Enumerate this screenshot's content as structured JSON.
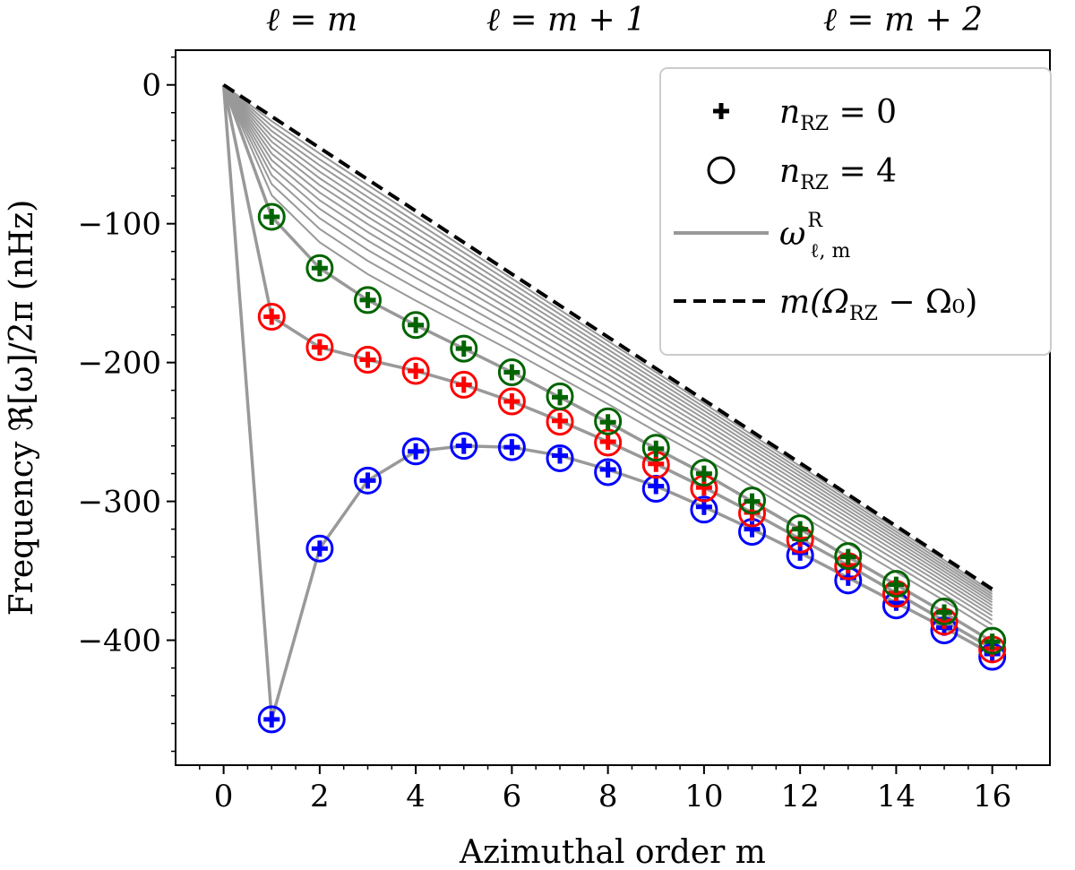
{
  "chart_data": {
    "type": "line",
    "xlabel": "Azimuthal order m",
    "ylabel": "Frequency ℜ[ω]/2π (nHz)",
    "xlim": [
      -1,
      17.2
    ],
    "ylim": [
      -490,
      25
    ],
    "xticks": [
      0,
      2,
      4,
      6,
      8,
      10,
      12,
      14,
      16
    ],
    "xtick_labels": [
      "0",
      "2",
      "4",
      "6",
      "8",
      "10",
      "12",
      "14",
      "16"
    ],
    "yticks": [
      0,
      -100,
      -200,
      -300,
      -400
    ],
    "ytick_labels": [
      "0",
      "−100",
      "−200",
      "−300",
      "−400"
    ],
    "top_labels": [
      {
        "text": "ℓ = m",
        "color": "#0000ff"
      },
      {
        "text": "ℓ = m + 1",
        "color": "#ff0000"
      },
      {
        "text": "ℓ = m + 2",
        "color": "#006400"
      }
    ],
    "legend": {
      "position": "top-right",
      "entries": [
        {
          "marker": "plus",
          "label": "n",
          "sub": "RZ",
          "suffix": " = 0"
        },
        {
          "marker": "circle",
          "label": "n",
          "sub": "RZ",
          "suffix": " = 4"
        },
        {
          "marker": "line",
          "label": "ω",
          "sup": "R",
          "sub": "ℓ, m",
          "suffix": ""
        },
        {
          "marker": "dashed",
          "label": "m(Ω",
          "sub": "RZ",
          "suffix": " − Ω₀)"
        }
      ]
    },
    "reference_line": {
      "name": "m(Ω_RZ − Ω_0)",
      "slope": -22.7
    },
    "m": [
      0,
      1,
      2,
      3,
      4,
      5,
      6,
      7,
      8,
      9,
      10,
      11,
      12,
      13,
      14,
      15,
      16
    ],
    "series": [
      {
        "name": "ℓ = m",
        "color": "#0000ff",
        "values": [
          0,
          -457,
          -334,
          -285,
          -264,
          -260,
          -261,
          -267,
          -277,
          -289,
          -304,
          -320,
          -337,
          -355,
          -373,
          -391,
          -410
        ]
      },
      {
        "name": "ℓ = m + 1",
        "color": "#ff0000",
        "values": [
          0,
          -167,
          -189,
          -198,
          -206,
          -216,
          -228,
          -242,
          -257,
          -273,
          -290,
          -308,
          -327,
          -346,
          -366,
          -386,
          -406
        ]
      },
      {
        "name": "ℓ = m + 2",
        "color": "#006400",
        "values": [
          0,
          -95,
          -132,
          -155,
          -173,
          -190,
          -207,
          -225,
          -243,
          -262,
          -280,
          -300,
          -320,
          -340,
          -360,
          -380,
          -401
        ]
      }
    ],
    "gray_curve_count": 12,
    "circle_m_range": [
      1,
      16
    ],
    "colors": {
      "gray": "#999999",
      "reference": "#000000"
    }
  }
}
